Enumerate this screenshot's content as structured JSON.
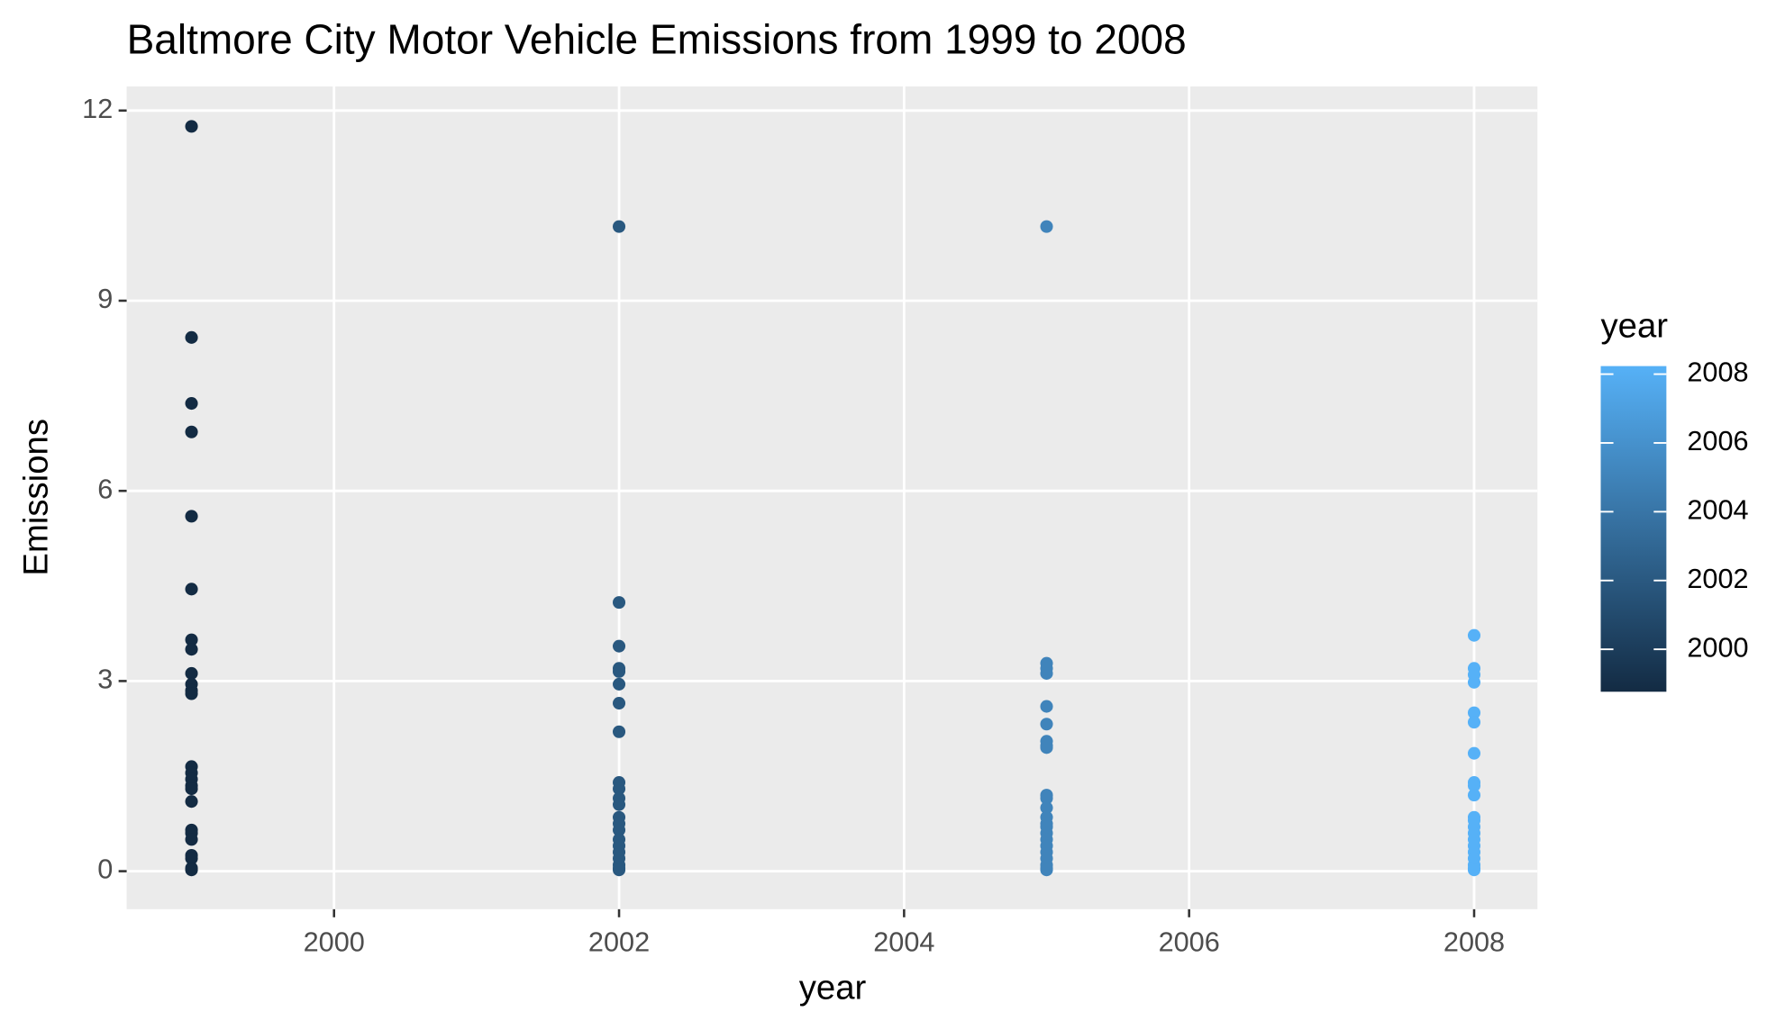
{
  "chart_data": {
    "type": "scatter",
    "title": "Baltmore City Motor Vehicle Emissions from 1999 to 2008",
    "x_label": "year",
    "y_label": "Emissions",
    "x": [
      1999,
      1999,
      1999,
      1999,
      1999,
      1999,
      1999,
      1999,
      1999,
      1999,
      1999,
      1999,
      1999,
      1999,
      1999,
      1999,
      1999,
      1999,
      1999,
      1999,
      1999,
      1999,
      1999,
      1999,
      1999,
      2002,
      2002,
      2002,
      2002,
      2002,
      2002,
      2002,
      2002,
      2002,
      2002,
      2002,
      2002,
      2002,
      2002,
      2002,
      2002,
      2002,
      2002,
      2002,
      2002,
      2002,
      2002,
      2005,
      2005,
      2005,
      2005,
      2005,
      2005,
      2005,
      2005,
      2005,
      2005,
      2005,
      2005,
      2005,
      2005,
      2005,
      2005,
      2005,
      2005,
      2005,
      2005,
      2005,
      2005,
      2005,
      2008,
      2008,
      2008,
      2008,
      2008,
      2008,
      2008,
      2008,
      2008,
      2008,
      2008,
      2008,
      2008,
      2008,
      2008,
      2008,
      2008,
      2008,
      2008,
      2008,
      2008
    ],
    "y": [
      11.75,
      8.42,
      7.38,
      6.93,
      5.6,
      4.45,
      3.65,
      3.5,
      3.12,
      2.95,
      2.85,
      2.8,
      1.65,
      1.55,
      1.45,
      1.35,
      1.3,
      1.1,
      0.65,
      0.6,
      0.5,
      0.25,
      0.2,
      0.05,
      0.02,
      10.17,
      4.24,
      3.55,
      3.2,
      3.15,
      2.95,
      2.65,
      2.2,
      1.4,
      1.3,
      1.15,
      1.05,
      0.85,
      0.75,
      0.65,
      0.5,
      0.4,
      0.3,
      0.2,
      0.1,
      0.05,
      0.02,
      10.17,
      3.28,
      3.2,
      3.12,
      2.6,
      2.32,
      2.05,
      1.98,
      1.95,
      1.2,
      1.15,
      1.0,
      0.85,
      0.75,
      0.7,
      0.6,
      0.5,
      0.4,
      0.3,
      0.2,
      0.1,
      0.05,
      0.02,
      3.72,
      3.2,
      3.1,
      2.98,
      2.5,
      2.35,
      1.86,
      1.4,
      1.35,
      1.2,
      0.85,
      0.8,
      0.7,
      0.6,
      0.5,
      0.4,
      0.3,
      0.2,
      0.1,
      0.05,
      0.02
    ],
    "xlim": [
      1998.545,
      2008.444
    ],
    "ylim": [
      -0.6,
      12.38
    ],
    "xticks": [
      2000,
      2002,
      2004,
      2006,
      2008
    ],
    "yticks": [
      0,
      3,
      6,
      9,
      12
    ],
    "grid": true,
    "legend": {
      "title": "year",
      "position": "right",
      "low": "#132B43",
      "high": "#56B1F7",
      "limits": [
        1999,
        2008
      ],
      "ticks": [
        2000,
        2002,
        2004,
        2006,
        2008
      ]
    }
  }
}
